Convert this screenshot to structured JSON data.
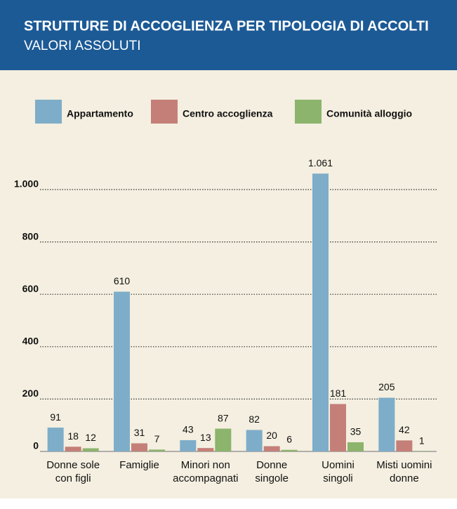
{
  "chart_data": {
    "type": "bar",
    "title": "STRUTTURE DI ACCOGLIENZA PER TIPOLOGIA DI ACCOLTI",
    "subtitle": "VALORI ASSOLUTI",
    "categories": [
      "Donne sole\ncon figli",
      "Famiglie",
      "Minori non\naccompagnati",
      "Donne\nsingole",
      "Uomini\nsingoli",
      "Misti uomini\ndonne"
    ],
    "series": [
      {
        "name": "Appartamento",
        "color": "#7eadc9",
        "values": [
          91,
          610,
          43,
          82,
          1061,
          205
        ],
        "value_labels": [
          "91",
          "610",
          "43",
          "82",
          "1.061",
          "205"
        ]
      },
      {
        "name": "Centro accoglienza",
        "color": "#c47f78",
        "values": [
          18,
          31,
          13,
          20,
          181,
          42
        ]
      },
      {
        "name": "Comunità alloggio",
        "color": "#8cb46c",
        "values": [
          12,
          7,
          87,
          6,
          35,
          1
        ]
      }
    ],
    "ylim": [
      0,
      1100
    ],
    "yticks": [
      0,
      200,
      400,
      600,
      800,
      {
        "value": 1000,
        "label": "1.000"
      }
    ],
    "grid": true
  }
}
